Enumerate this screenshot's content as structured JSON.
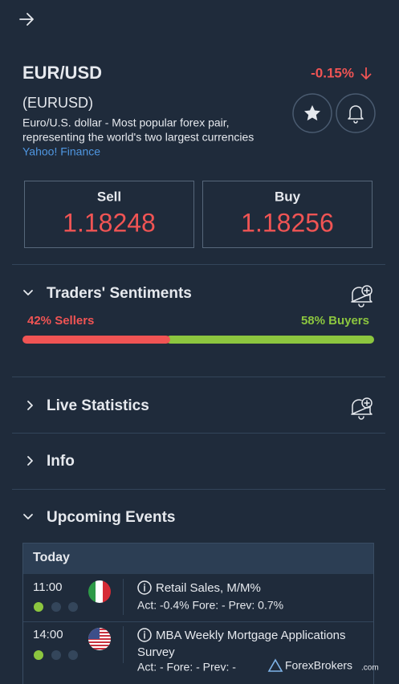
{
  "instrument": {
    "symbol": "EUR/USD",
    "code": "(EURUSD)",
    "change": "-0.15%",
    "description_lines": [
      "Euro/U.S. dollar - Most popular forex pair,",
      "representing the world's two largest currencies"
    ],
    "source": "Yahoo! Finance"
  },
  "quotes": {
    "sell": {
      "label": "Sell",
      "price": "1.18248"
    },
    "buy": {
      "label": "Buy",
      "price": "1.18256"
    }
  },
  "sentiment": {
    "title": "Traders' Sentiments",
    "sellers": {
      "label": "42% Sellers",
      "value": 42
    },
    "buyers": {
      "label": "58% Buyers",
      "value": 58
    }
  },
  "live_statistics": {
    "title": "Live Statistics"
  },
  "info": {
    "title": "Info"
  },
  "upcoming_events": {
    "title": "Upcoming Events",
    "day": "Today",
    "events": [
      {
        "time": "11:00",
        "title": "Retail Sales, M/M%",
        "details": "Act: -0.4% Fore: - Prev: 0.7%"
      },
      {
        "time": "14:00",
        "title": "MBA Weekly Mortgage Applications",
        "title_cont": "Survey",
        "details": "Act: - Fore: - Prev: -"
      }
    ]
  },
  "watermark": {
    "brand": "ForexBrokers",
    "domain": ".com"
  }
}
